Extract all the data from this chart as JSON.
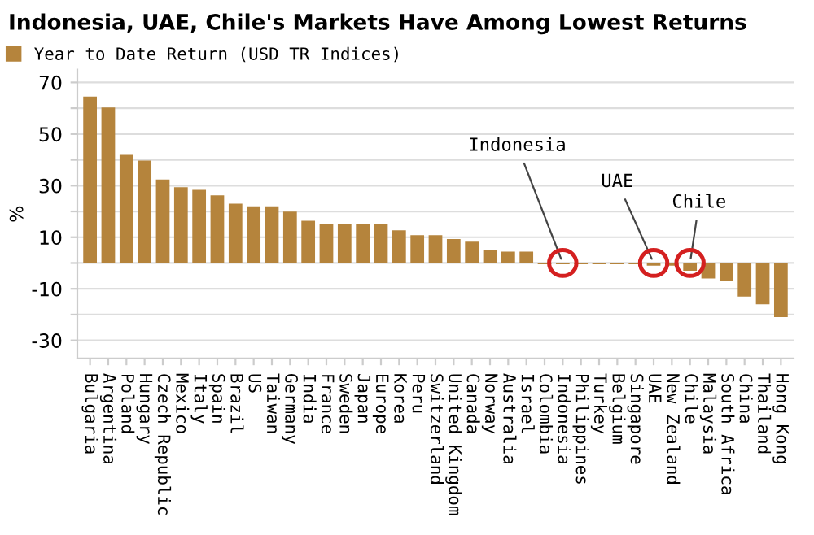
{
  "chart_data": {
    "type": "bar",
    "title": "Indonesia, UAE, Chile's Markets Have Among Lowest Returns",
    "ylabel": "%",
    "categories": [
      "Bulgaria",
      "Argentina",
      "Poland",
      "Hungary",
      "Czech Republic",
      "Mexico",
      "Italy",
      "Spain",
      "Brazil",
      "US",
      "Taiwan",
      "Germany",
      "India",
      "France",
      "Sweden",
      "Japan",
      "Europe",
      "Korea",
      "Peru",
      "Switzerland",
      "United Kingdom",
      "Canada",
      "Norway",
      "Australia",
      "Israel",
      "Colombia",
      "Indonesia",
      "Philippines",
      "Turkey",
      "Belgium",
      "Singapore",
      "UAE",
      "New Zealand",
      "Chile",
      "Malaysia",
      "South Africa",
      "China",
      "Thailand",
      "Hong Kong"
    ],
    "series": [
      {
        "name": "Year to Date Return (USD TR Indices)",
        "color": "#b5843c",
        "values": [
          64.5,
          60.3,
          41.9,
          39.7,
          32.4,
          29.4,
          28.4,
          26.2,
          23,
          22,
          22,
          19.9,
          16.4,
          15.2,
          15.2,
          15.2,
          15.2,
          12.7,
          10.8,
          10.8,
          9.3,
          8.3,
          5.1,
          4.4,
          4.4,
          -0.5,
          -0.5,
          -0.5,
          -0.5,
          -0.5,
          -0.5,
          -1,
          -1,
          -3,
          -6,
          -7,
          -13,
          -16,
          -21
        ]
      }
    ],
    "ylim": [
      -37,
      75
    ],
    "yticks": [
      -30,
      {
        "value": -20,
        "label": null
      },
      -10,
      {
        "value": 0,
        "label": null
      },
      10,
      {
        "value": 20,
        "label": null
      },
      30,
      {
        "value": 40,
        "label": null
      },
      50,
      {
        "value": 60,
        "label": null
      },
      70
    ],
    "grid": "y",
    "legend": "top left",
    "annotations": [
      {
        "text": "Indonesia",
        "x": "Indonesia",
        "y": 0
      },
      {
        "text": "UAE",
        "x": "UAE",
        "y": 0
      },
      {
        "text": "Chile",
        "x": "Chile",
        "y": 0
      }
    ]
  }
}
